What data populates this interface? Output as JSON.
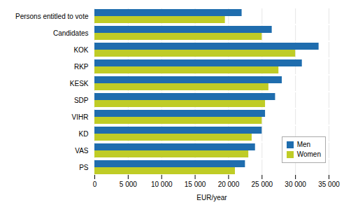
{
  "chart_data": {
    "type": "bar",
    "orientation": "horizontal",
    "categories": [
      "Persons entitled to vote",
      "Candidates",
      "KOK",
      "RKP",
      "KESK",
      "SDP",
      "VIHR",
      "KD",
      "VAS",
      "PS"
    ],
    "series": [
      {
        "name": "Men",
        "color": "#1F6DAE",
        "values": [
          22000,
          26500,
          33500,
          31000,
          28000,
          27000,
          25500,
          25000,
          24000,
          22500
        ]
      },
      {
        "name": "Women",
        "color": "#BFCC26",
        "values": [
          19500,
          25000,
          30000,
          27500,
          26000,
          25500,
          25000,
          23500,
          23000,
          21000
        ]
      }
    ],
    "xlabel": "EUR/year",
    "xlim": [
      0,
      35000
    ],
    "xticks": [
      0,
      {
        "value": 5000,
        "label": "5 000"
      },
      {
        "value": 10000,
        "label": "10 000"
      },
      {
        "value": 15000,
        "label": "15 000"
      },
      {
        "value": 20000,
        "label": "20 000"
      },
      {
        "value": 25000,
        "label": "25 000"
      },
      {
        "value": 30000,
        "label": "30 000"
      },
      {
        "value": 35000,
        "label": "35 000"
      }
    ],
    "grid": true,
    "legend": "lower right"
  }
}
